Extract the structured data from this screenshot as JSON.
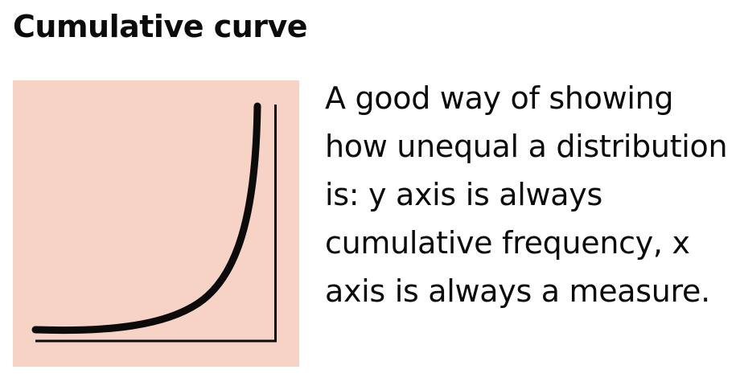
{
  "title": "Cumulative curve",
  "icon": {
    "name": "cumulative-curve-icon",
    "background_color": "#f6d3c5",
    "stroke_color": "#0b0b0b"
  },
  "description": "A good way of showing how unequal a distribution is: y axis is always cumulative frequency, x axis is always a measure."
}
